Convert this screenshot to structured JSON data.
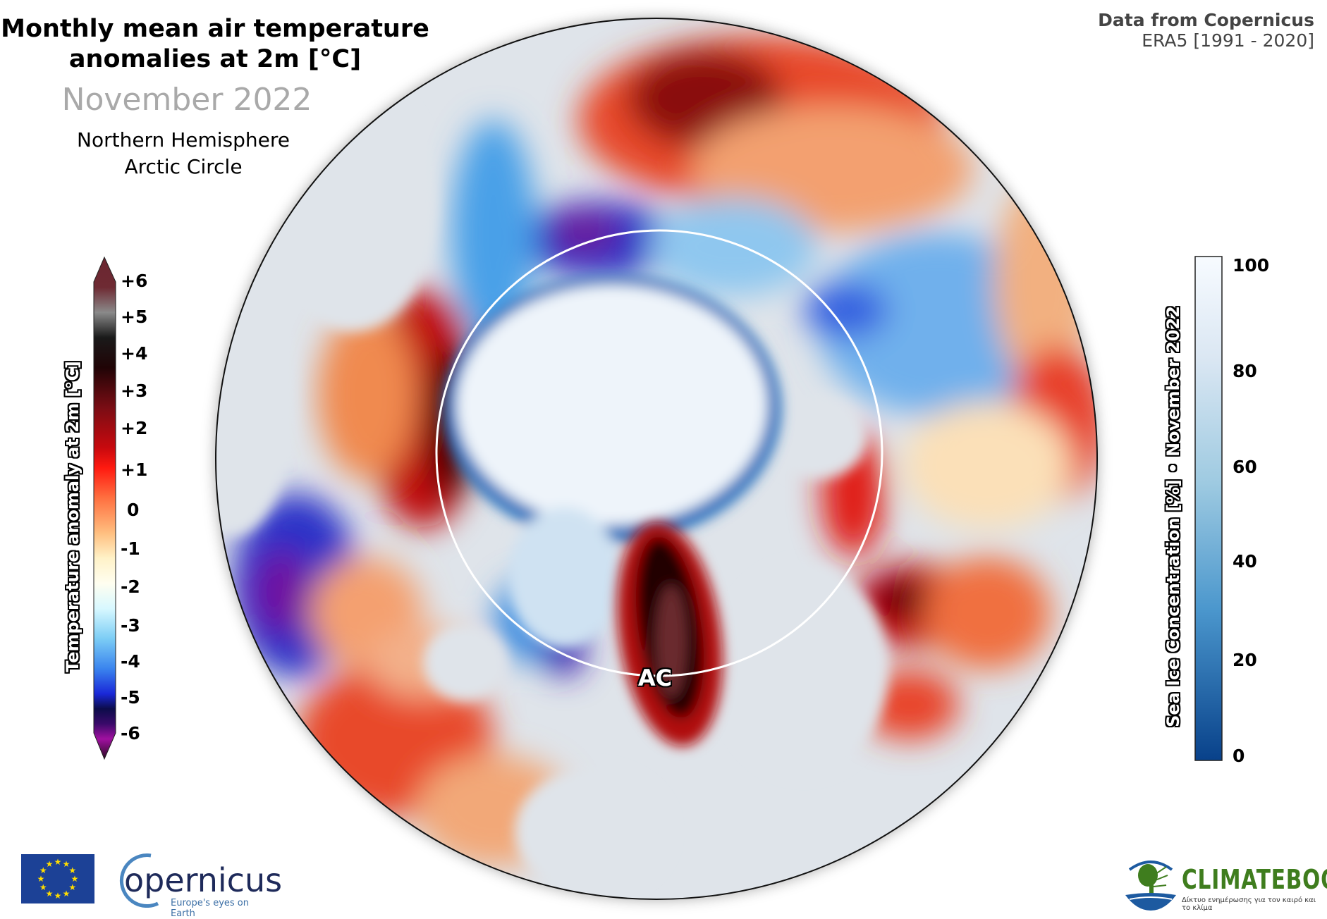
{
  "header": {
    "title_line1": "Monthly mean air temperature",
    "title_line2": "anomalies at 2m [°C]",
    "period": "November 2022",
    "region_line1": "Northern Hemisphere",
    "region_line2": "Arctic Circle"
  },
  "source": {
    "line1": "Data from Copernicus",
    "line2": "ERA5 [1991 - 2020]"
  },
  "map": {
    "arctic_circle_label": "AC",
    "colors": {
      "ocean": "#dfe4ea",
      "sea_ice": "#f2f6fb",
      "ice_edge": "#1f5fa8"
    }
  },
  "temperature_legend": {
    "title": "Temperature anomaly at 2m [°C]",
    "ticks": [
      "+6",
      "+5",
      "+4",
      "+3",
      "+2",
      "+1",
      "0",
      "-1",
      "-2",
      "-3",
      "-4",
      "-5",
      "-6"
    ],
    "range": [
      -6,
      6
    ]
  },
  "ice_legend": {
    "title": "Sea Ice Concentration [%] • November 2022",
    "ticks": [
      "100",
      "80",
      "60",
      "40",
      "20",
      "0"
    ],
    "range": [
      0,
      100
    ]
  },
  "logos": {
    "copernicus_word": "opernicus",
    "copernicus_tagline": "Europe's eyes on Earth",
    "climatebook_word": "CLIMATEBOOK",
    "climatebook_tagline": "Δίκτυο ενημέρωσης για τον καιρό και το κλίμα"
  }
}
